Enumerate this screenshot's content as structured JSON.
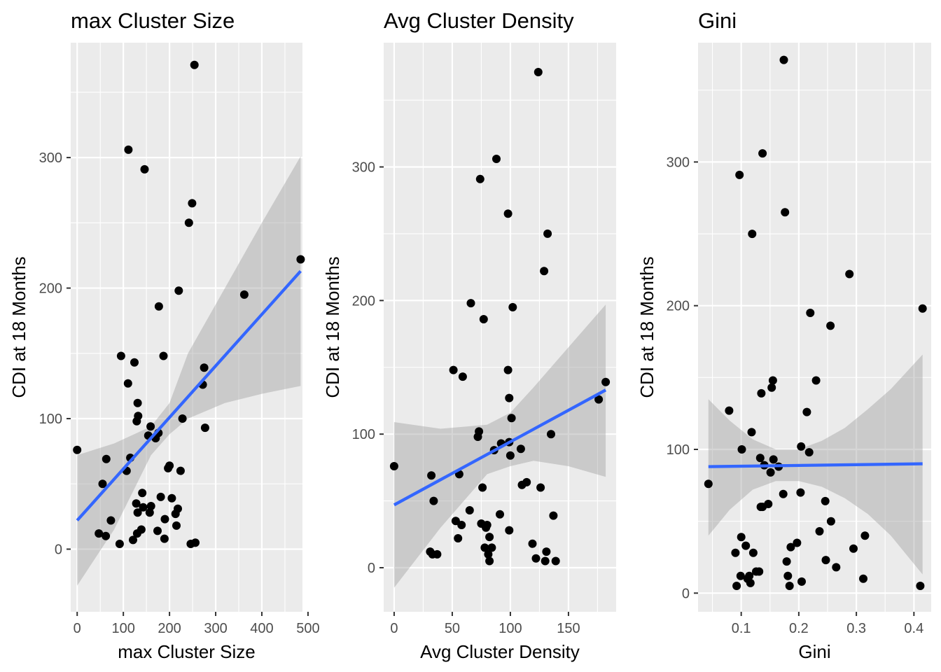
{
  "colors": {
    "panel_background": "#ebebeb",
    "gridline": "#ffffff",
    "point": "#000000",
    "fit_line": "#3366ff",
    "ribbon": "#999999",
    "tick_label": "#4d4d4d"
  },
  "chart_data": [
    {
      "type": "scatter",
      "title": "max Cluster Size",
      "xlabel": "max Cluster Size",
      "ylabel": "CDI at 18 Months",
      "xlim": [
        -14,
        488
      ],
      "ylim": [
        -48,
        388
      ],
      "x_ticks": [
        0,
        100,
        200,
        300,
        400,
        500
      ],
      "x_tick_labels": [
        "0",
        "100",
        "200",
        "300",
        "400",
        "500"
      ],
      "y_ticks": [
        0,
        100,
        200,
        300
      ],
      "y_tick_labels": [
        "0",
        "100",
        "200",
        "300"
      ],
      "grid": true,
      "points": [
        [
          0,
          76
        ],
        [
          47,
          12
        ],
        [
          55,
          50
        ],
        [
          62,
          10
        ],
        [
          63,
          69
        ],
        [
          73,
          22
        ],
        [
          92,
          4
        ],
        [
          95,
          148
        ],
        [
          107,
          60
        ],
        [
          110,
          127
        ],
        [
          111,
          306
        ],
        [
          115,
          70
        ],
        [
          121,
          7
        ],
        [
          124,
          143
        ],
        [
          128,
          35
        ],
        [
          129,
          98
        ],
        [
          130,
          12
        ],
        [
          131,
          28
        ],
        [
          131,
          112
        ],
        [
          132,
          102
        ],
        [
          139,
          15
        ],
        [
          141,
          43
        ],
        [
          143,
          32
        ],
        [
          146,
          291
        ],
        [
          154,
          87
        ],
        [
          157,
          28
        ],
        [
          159,
          94
        ],
        [
          160,
          33
        ],
        [
          170,
          85
        ],
        [
          174,
          14
        ],
        [
          176,
          89
        ],
        [
          177,
          186
        ],
        [
          181,
          40
        ],
        [
          187,
          148
        ],
        [
          189,
          8
        ],
        [
          190,
          23
        ],
        [
          197,
          62
        ],
        [
          200,
          64
        ],
        [
          205,
          39
        ],
        [
          213,
          27
        ],
        [
          215,
          18
        ],
        [
          218,
          31
        ],
        [
          220,
          198
        ],
        [
          224,
          60
        ],
        [
          228,
          100
        ],
        [
          242,
          250
        ],
        [
          246,
          4
        ],
        [
          249,
          265
        ],
        [
          254,
          371
        ],
        [
          256,
          5
        ],
        [
          272,
          126
        ],
        [
          275,
          139
        ],
        [
          277,
          93
        ],
        [
          362,
          195
        ],
        [
          484,
          222
        ]
      ],
      "fit": {
        "x": [
          0,
          484
        ],
        "y": [
          22,
          213
        ]
      },
      "ribbon": {
        "x": [
          0,
          80,
          160,
          200,
          240,
          320,
          400,
          484
        ],
        "lower": [
          -28,
          15,
          72,
          88,
          100,
          112,
          119,
          125
        ],
        "upper": [
          72,
          81,
          94,
          112,
          150,
          200,
          250,
          301
        ]
      }
    },
    {
      "type": "scatter",
      "title": "Avg Cluster Density",
      "xlabel": "Avg Cluster Density",
      "ylabel": "CDI at 18 Months",
      "xlim": [
        -9,
        191
      ],
      "ylim": [
        -33,
        393
      ],
      "x_ticks": [
        0,
        50,
        100,
        150
      ],
      "x_tick_labels": [
        "0",
        "50",
        "100",
        "150"
      ],
      "y_ticks": [
        0,
        100,
        200,
        300
      ],
      "y_tick_labels": [
        "0",
        "100",
        "200",
        "300"
      ],
      "grid": true,
      "points": [
        [
          0,
          76
        ],
        [
          31,
          12
        ],
        [
          32,
          69
        ],
        [
          33,
          10
        ],
        [
          34,
          50
        ],
        [
          37,
          10
        ],
        [
          51,
          148
        ],
        [
          53,
          35
        ],
        [
          55,
          22
        ],
        [
          56,
          70
        ],
        [
          58,
          32
        ],
        [
          59,
          143
        ],
        [
          65,
          43
        ],
        [
          66,
          198
        ],
        [
          72,
          98
        ],
        [
          73,
          102
        ],
        [
          74,
          291
        ],
        [
          75,
          33
        ],
        [
          76,
          60
        ],
        [
          77,
          186
        ],
        [
          78,
          15
        ],
        [
          79,
          30
        ],
        [
          80,
          32
        ],
        [
          81,
          10
        ],
        [
          82,
          5
        ],
        [
          82,
          23
        ],
        [
          84,
          15
        ],
        [
          86,
          88
        ],
        [
          88,
          306
        ],
        [
          91,
          40
        ],
        [
          92,
          93
        ],
        [
          98,
          148
        ],
        [
          98,
          265
        ],
        [
          99,
          127
        ],
        [
          99,
          28
        ],
        [
          99,
          94
        ],
        [
          100,
          84
        ],
        [
          101,
          112
        ],
        [
          102,
          195
        ],
        [
          109,
          89
        ],
        [
          110,
          62
        ],
        [
          114,
          64
        ],
        [
          119,
          18
        ],
        [
          122,
          7
        ],
        [
          124,
          371
        ],
        [
          126,
          60
        ],
        [
          129,
          222
        ],
        [
          130,
          5
        ],
        [
          131,
          12
        ],
        [
          132,
          250
        ],
        [
          135,
          100
        ],
        [
          137,
          39
        ],
        [
          139,
          5
        ],
        [
          176,
          126
        ],
        [
          182,
          139
        ]
      ],
      "fit": {
        "x": [
          0,
          182
        ],
        "y": [
          47,
          133
        ]
      },
      "ribbon": {
        "x": [
          0,
          40,
          80,
          100,
          120,
          150,
          182
        ],
        "lower": [
          -15,
          30,
          70,
          76,
          80,
          76,
          68
        ],
        "upper": [
          109,
          104,
          107,
          116,
          135,
          165,
          197
        ]
      }
    },
    {
      "type": "scatter",
      "title": "Gini",
      "xlabel": "Gini",
      "ylabel": "CDI at 18 Months",
      "xlim": [
        0.025,
        0.43
      ],
      "ylim": [
        -13,
        383
      ],
      "x_ticks": [
        0.1,
        0.2,
        0.3,
        0.4
      ],
      "x_tick_labels": [
        "0.1",
        "0.2",
        "0.3",
        "0.4"
      ],
      "y_ticks": [
        0,
        100,
        200,
        300
      ],
      "y_tick_labels": [
        "0",
        "100",
        "200",
        "300"
      ],
      "grid": true,
      "points": [
        [
          0.043,
          76
        ],
        [
          0.079,
          127
        ],
        [
          0.09,
          28
        ],
        [
          0.092,
          5
        ],
        [
          0.097,
          291
        ],
        [
          0.099,
          12
        ],
        [
          0.1,
          39
        ],
        [
          0.101,
          100
        ],
        [
          0.108,
          33
        ],
        [
          0.111,
          10
        ],
        [
          0.114,
          12
        ],
        [
          0.116,
          7
        ],
        [
          0.118,
          112
        ],
        [
          0.119,
          250
        ],
        [
          0.121,
          28
        ],
        [
          0.126,
          15
        ],
        [
          0.131,
          15
        ],
        [
          0.133,
          94
        ],
        [
          0.134,
          60
        ],
        [
          0.135,
          139
        ],
        [
          0.137,
          306
        ],
        [
          0.137,
          60
        ],
        [
          0.14,
          89
        ],
        [
          0.147,
          62
        ],
        [
          0.151,
          84
        ],
        [
          0.153,
          143
        ],
        [
          0.155,
          148
        ],
        [
          0.156,
          93
        ],
        [
          0.165,
          88
        ],
        [
          0.173,
          69
        ],
        [
          0.174,
          371
        ],
        [
          0.176,
          265
        ],
        [
          0.179,
          22
        ],
        [
          0.181,
          12
        ],
        [
          0.184,
          5
        ],
        [
          0.186,
          32
        ],
        [
          0.197,
          35
        ],
        [
          0.203,
          70
        ],
        [
          0.204,
          102
        ],
        [
          0.205,
          8
        ],
        [
          0.214,
          126
        ],
        [
          0.218,
          98
        ],
        [
          0.22,
          195
        ],
        [
          0.23,
          148
        ],
        [
          0.236,
          43
        ],
        [
          0.246,
          64
        ],
        [
          0.247,
          23
        ],
        [
          0.255,
          186
        ],
        [
          0.256,
          50
        ],
        [
          0.265,
          18
        ],
        [
          0.288,
          222
        ],
        [
          0.295,
          31
        ],
        [
          0.312,
          10
        ],
        [
          0.315,
          40
        ],
        [
          0.411,
          5
        ],
        [
          0.415,
          198
        ]
      ],
      "fit": {
        "x": [
          0.043,
          0.415
        ],
        "y": [
          88,
          90
        ]
      },
      "ribbon": {
        "x": [
          0.043,
          0.08,
          0.12,
          0.16,
          0.2,
          0.24,
          0.28,
          0.32,
          0.36,
          0.415
        ],
        "lower": [
          40,
          58,
          72,
          78,
          78,
          74,
          66,
          55,
          40,
          13
        ],
        "upper": [
          135,
          120,
          107,
          100,
          100,
          106,
          115,
          128,
          142,
          166
        ]
      }
    }
  ],
  "panels_layout_note": ""
}
